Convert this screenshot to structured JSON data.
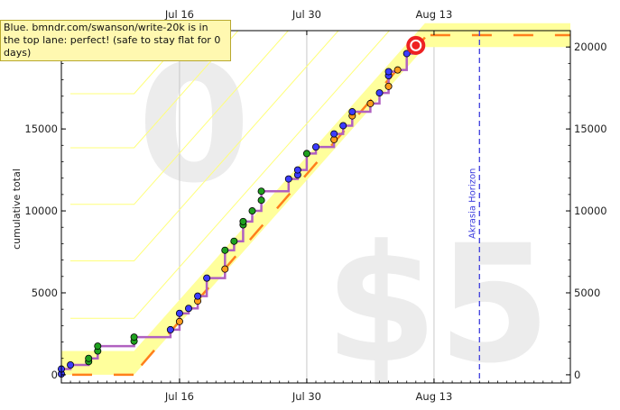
{
  "info_box": "Blue. bmndr.com/swanson/write-20k is in the top lane: perfect! (safe to stay flat for 0 days)",
  "watermark": {
    "safe_days": "0",
    "pledge": "$5"
  },
  "colors": {
    "road_fill": "#ffff9c",
    "road_center": "#ff7f1c",
    "lane_lines": "#ffff7a",
    "steps": "#b060c0",
    "akrasia_line": "#3c3cdd",
    "dot_blue": "#3c3cff",
    "dot_green": "#1fa01f",
    "dot_orange": "#ff9c1c",
    "target": "#ee2222"
  },
  "chart_data": {
    "type": "line",
    "title": "",
    "xlabel": "",
    "ylabel": "cumulative total",
    "xlim": [
      "2024-07-03",
      "2024-08-28"
    ],
    "ylim": [
      -500,
      21000
    ],
    "x_ticks": [
      {
        "date": "2024-07-16",
        "label": "Jul 16"
      },
      {
        "date": "2024-07-30",
        "label": "Jul 30"
      },
      {
        "date": "2024-08-13",
        "label": "Aug 13"
      }
    ],
    "y_ticks": [
      0,
      5000,
      10000,
      15000,
      20000
    ],
    "vertical_markers": [
      {
        "date": "2024-08-18",
        "label": "Akrasia Horizon",
        "style": "dashed"
      }
    ],
    "road": [
      [
        "2024-07-03",
        0
      ],
      [
        "2024-07-11",
        0
      ],
      [
        "2024-08-12",
        20000
      ],
      [
        "2024-08-28",
        20000
      ]
    ],
    "road_width": 1450,
    "lanes": [
      {
        "flat": 3450,
        "start": "2024-07-11"
      },
      {
        "flat": 6950,
        "start": "2024-07-11"
      },
      {
        "flat": 10400,
        "start": "2024-07-11"
      },
      {
        "flat": 13850,
        "start": "2024-07-11"
      },
      {
        "flat": 17150,
        "start": "2024-07-11"
      }
    ],
    "series": [
      {
        "type": "points",
        "points": [
          {
            "x": "2024-07-03",
            "y": 50,
            "c": "b"
          },
          {
            "x": "2024-07-03",
            "y": 350,
            "c": "b"
          },
          {
            "x": "2024-07-04",
            "y": 600,
            "c": "b"
          },
          {
            "x": "2024-07-06",
            "y": 800,
            "c": "g"
          },
          {
            "x": "2024-07-06",
            "y": 1000,
            "c": "g"
          },
          {
            "x": "2024-07-07",
            "y": 1450,
            "c": "g"
          },
          {
            "x": "2024-07-07",
            "y": 1750,
            "c": "g"
          },
          {
            "x": "2024-07-11",
            "y": 2050,
            "c": "g"
          },
          {
            "x": "2024-07-11",
            "y": 2300,
            "c": "g"
          },
          {
            "x": "2024-07-15",
            "y": 2750,
            "c": "b"
          },
          {
            "x": "2024-07-16",
            "y": 3250,
            "c": "o"
          },
          {
            "x": "2024-07-16",
            "y": 3750,
            "c": "b"
          },
          {
            "x": "2024-07-17",
            "y": 4050,
            "c": "b"
          },
          {
            "x": "2024-07-18",
            "y": 4500,
            "c": "o"
          },
          {
            "x": "2024-07-18",
            "y": 4800,
            "c": "b"
          },
          {
            "x": "2024-07-19",
            "y": 5900,
            "c": "b"
          },
          {
            "x": "2024-07-21",
            "y": 6450,
            "c": "o"
          },
          {
            "x": "2024-07-21",
            "y": 7600,
            "c": "g"
          },
          {
            "x": "2024-07-22",
            "y": 8150,
            "c": "g"
          },
          {
            "x": "2024-07-23",
            "y": 9150,
            "c": "g"
          },
          {
            "x": "2024-07-23",
            "y": 9350,
            "c": "g"
          },
          {
            "x": "2024-07-24",
            "y": 10000,
            "c": "g"
          },
          {
            "x": "2024-07-25",
            "y": 10650,
            "c": "g"
          },
          {
            "x": "2024-07-25",
            "y": 11200,
            "c": "g"
          },
          {
            "x": "2024-07-28",
            "y": 11950,
            "c": "b"
          },
          {
            "x": "2024-07-29",
            "y": 12200,
            "c": "b"
          },
          {
            "x": "2024-07-29",
            "y": 12500,
            "c": "b"
          },
          {
            "x": "2024-07-30",
            "y": 13500,
            "c": "g"
          },
          {
            "x": "2024-07-31",
            "y": 13900,
            "c": "b"
          },
          {
            "x": "2024-08-02",
            "y": 14350,
            "c": "o"
          },
          {
            "x": "2024-08-02",
            "y": 14700,
            "c": "b"
          },
          {
            "x": "2024-08-03",
            "y": 15200,
            "c": "b"
          },
          {
            "x": "2024-08-04",
            "y": 15800,
            "c": "o"
          },
          {
            "x": "2024-08-04",
            "y": 16050,
            "c": "b"
          },
          {
            "x": "2024-08-06",
            "y": 16550,
            "c": "o"
          },
          {
            "x": "2024-08-07",
            "y": 17200,
            "c": "b"
          },
          {
            "x": "2024-08-08",
            "y": 17600,
            "c": "o"
          },
          {
            "x": "2024-08-08",
            "y": 18250,
            "c": "b"
          },
          {
            "x": "2024-08-08",
            "y": 18500,
            "c": "b"
          },
          {
            "x": "2024-08-09",
            "y": 18600,
            "c": "o"
          },
          {
            "x": "2024-08-10",
            "y": 19600,
            "c": "b"
          },
          {
            "x": "2024-08-11",
            "y": 20100,
            "c": "b"
          }
        ]
      }
    ],
    "target": {
      "x": "2024-08-11",
      "y": 20100
    }
  }
}
